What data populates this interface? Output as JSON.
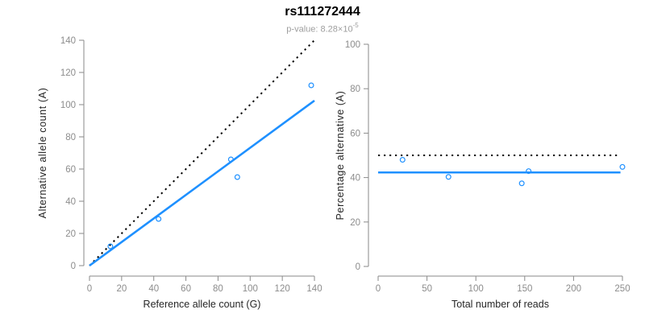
{
  "header": {
    "title": "rs111272444",
    "subtitle_base": "p-value: 8.28×10",
    "subtitle_exponent": "-5"
  },
  "colors": {
    "title": "#000000",
    "subtitle": "#9e9e9e",
    "accent_blue": "#1E90FF",
    "identity_black": "#000000",
    "axis": "#8a8a8a",
    "tick_label": "#8c8c8c",
    "axis_title": "#262626"
  },
  "chart_data": [
    {
      "type": "scatter",
      "name": "allele-count-scatter",
      "xlabel": "Reference allele count (G)",
      "ylabel": "Alternative allele count (A)",
      "xlim": [
        0,
        140
      ],
      "ylim": [
        0,
        140
      ],
      "xticks": [
        0,
        20,
        40,
        60,
        80,
        100,
        120,
        140
      ],
      "yticks": [
        0,
        20,
        40,
        60,
        80,
        100,
        120,
        140
      ],
      "points": [
        [
          13,
          12
        ],
        [
          43,
          29
        ],
        [
          88,
          66
        ],
        [
          92,
          55
        ],
        [
          138,
          112
        ]
      ],
      "point_color": "#1E90FF",
      "lines": [
        {
          "name": "identity-line",
          "style": "dotted",
          "color": "#000000",
          "width": 2,
          "x1": 0,
          "y1": 0,
          "x2": 140,
          "y2": 140
        },
        {
          "name": "fit-line",
          "style": "solid",
          "color": "#1E90FF",
          "width": 2.6,
          "x1": 0,
          "y1": 0,
          "x2": 140,
          "y2": 102.5
        }
      ]
    },
    {
      "type": "scatter",
      "name": "percentage-alternative-scatter",
      "xlabel": "Total number of reads",
      "ylabel": "Percentage alternative (A)",
      "xlim": [
        0,
        250
      ],
      "ylim": [
        0,
        100
      ],
      "xticks": [
        0,
        50,
        100,
        150,
        200,
        250
      ],
      "yticks": [
        0,
        20,
        40,
        60,
        80,
        100
      ],
      "points": [
        [
          25,
          48
        ],
        [
          72,
          40.3
        ],
        [
          147,
          37.4
        ],
        [
          154,
          42.9
        ],
        [
          250,
          44.8
        ]
      ],
      "point_color": "#1E90FF",
      "lines": [
        {
          "name": "expected-50pct-line",
          "style": "dotted",
          "color": "#000000",
          "width": 2,
          "x1": 0,
          "y1": 50,
          "x2": 248,
          "y2": 50
        },
        {
          "name": "observed-fraction-line",
          "style": "solid",
          "color": "#1E90FF",
          "width": 2.6,
          "x1": 0,
          "y1": 42.3,
          "x2": 248,
          "y2": 42.3
        }
      ]
    }
  ]
}
